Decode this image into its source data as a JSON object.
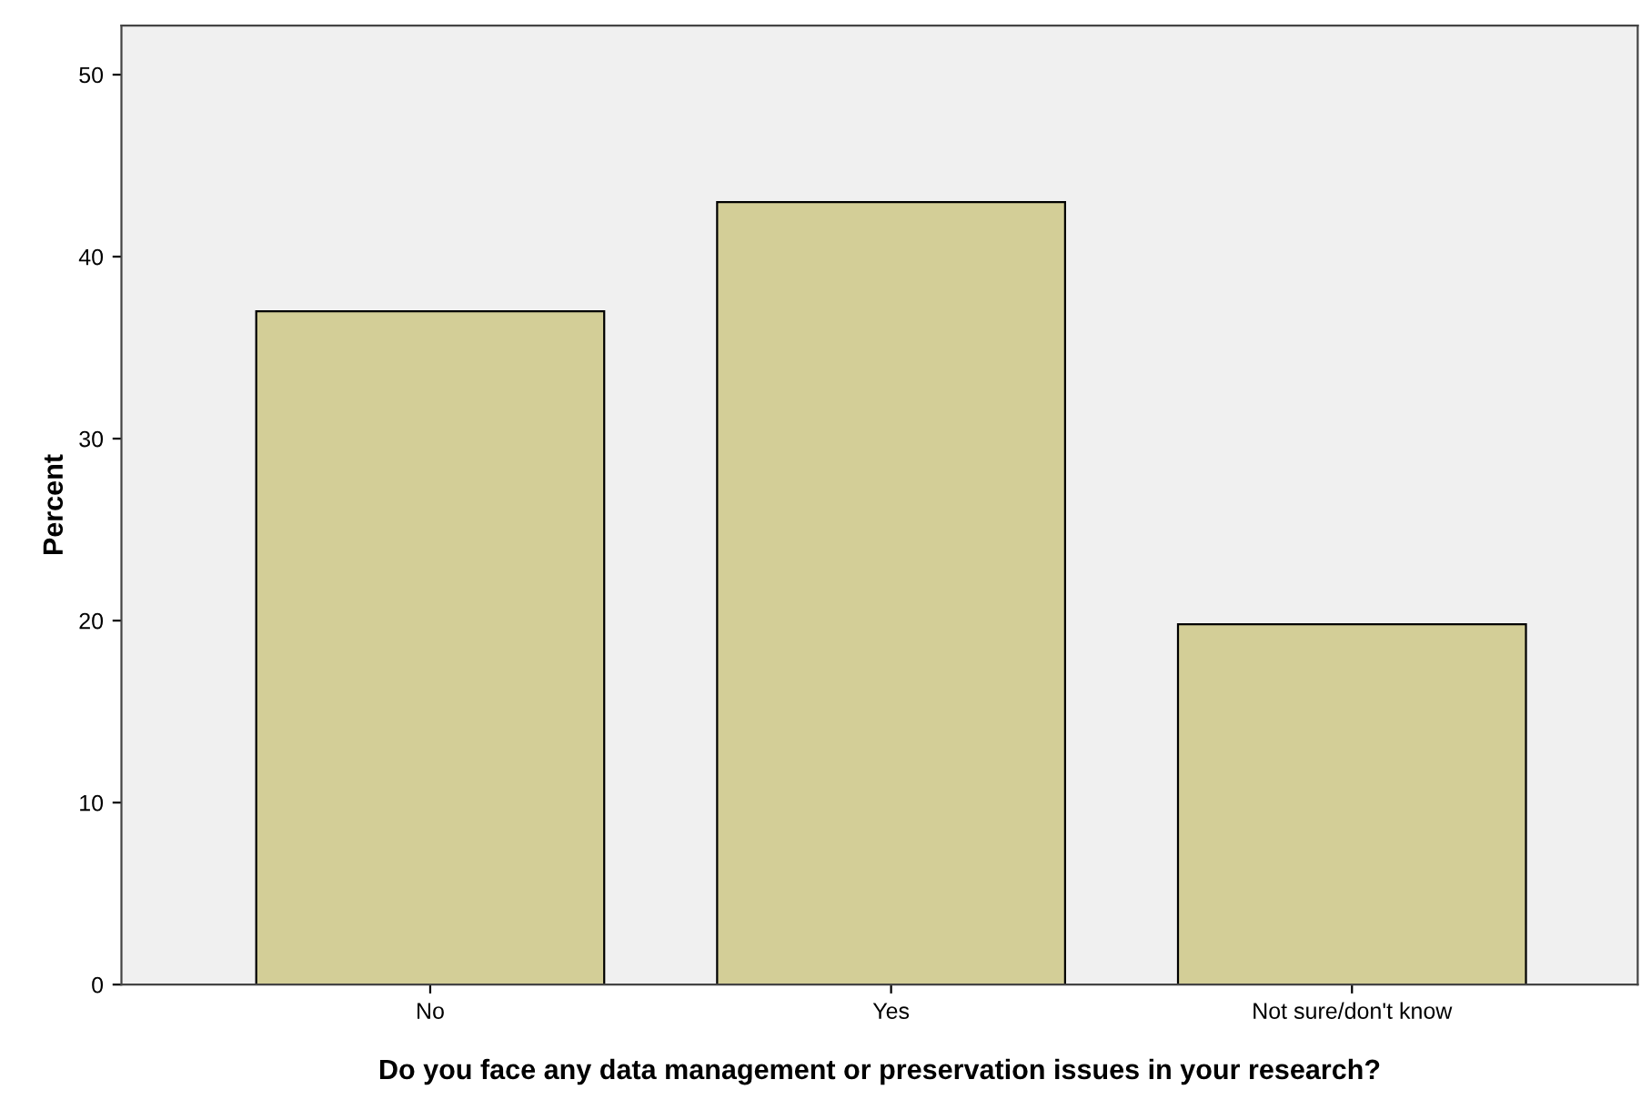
{
  "chart_data": {
    "type": "bar",
    "xlabel": "Do you face any data management or preservation issues in your research?",
    "ylabel": "Percent",
    "categories": [
      "No",
      "Yes",
      "Not sure/don't know"
    ],
    "values": [
      37.0,
      43.0,
      19.8
    ],
    "color": "#d3ce97",
    "ylim": [
      0,
      52.7
    ],
    "yticks": [
      0,
      10,
      20,
      30,
      40,
      50
    ],
    "grid": false,
    "legend": false
  }
}
